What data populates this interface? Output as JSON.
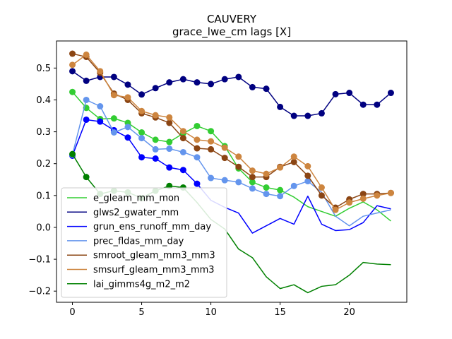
{
  "chart_data": {
    "type": "line",
    "title": "CAUVERY",
    "subtitle": "grace_lwe_cm lags [X]",
    "xlabel": "",
    "ylabel": "",
    "xlim": [
      -1.15,
      24.15
    ],
    "ylim": [
      -0.235,
      0.585
    ],
    "xticks": [
      0,
      5,
      10,
      15,
      20
    ],
    "yticks": [
      -0.2,
      -0.1,
      0.0,
      0.1,
      0.2,
      0.3,
      0.4,
      0.5
    ],
    "ytick_labels": [
      "−0.2",
      "−0.1",
      "0.0",
      "0.1",
      "0.2",
      "0.3",
      "0.4",
      "0.5"
    ],
    "grid": false,
    "legend_position": "lower-left",
    "x": [
      0,
      1,
      2,
      3,
      4,
      5,
      6,
      7,
      8,
      9,
      10,
      11,
      12,
      13,
      14,
      15,
      16,
      17,
      18,
      19,
      20,
      21,
      22,
      23
    ],
    "series": [
      {
        "name": "e_gleam_mm_mon",
        "color": "#32cd32",
        "values": [
          0.425,
          0.375,
          0.34,
          0.342,
          0.328,
          0.298,
          0.275,
          0.268,
          0.295,
          0.318,
          0.302,
          0.255,
          0.185,
          0.142,
          0.125,
          0.117,
          0.095,
          0.065,
          0.05,
          0.035,
          0.06,
          0.08,
          0.055,
          0.02
        ],
        "marker_upto": 15
      },
      {
        "name": "glws2_gwater_mm",
        "color": "#000080",
        "values": [
          0.49,
          0.46,
          0.472,
          0.472,
          0.448,
          0.417,
          0.437,
          0.455,
          0.465,
          0.455,
          0.45,
          0.465,
          0.472,
          0.44,
          0.435,
          0.378,
          0.35,
          0.35,
          0.358,
          0.418,
          0.422,
          0.385,
          0.385,
          0.422
        ],
        "marker_upto": 23
      },
      {
        "name": "grun_ens_runoff_mm_day",
        "color": "#0000ff",
        "values": [
          0.225,
          0.338,
          0.332,
          0.305,
          0.282,
          0.22,
          0.216,
          0.188,
          0.18,
          0.137,
          0.085,
          0.063,
          0.045,
          -0.018,
          0.005,
          0.028,
          0.01,
          0.098,
          0.01,
          -0.01,
          -0.007,
          0.015,
          0.068,
          0.058
        ],
        "marker_upto": 9
      },
      {
        "name": "prec_fldas_mm_day",
        "color": "#6495ed",
        "values": [
          0.228,
          0.4,
          0.38,
          0.298,
          0.315,
          0.28,
          0.245,
          0.247,
          0.236,
          0.22,
          0.155,
          0.148,
          0.142,
          0.122,
          0.105,
          0.098,
          0.13,
          0.145,
          0.11,
          0.035,
          0.005,
          0.035,
          0.045,
          0.055
        ],
        "marker_upto": 17
      },
      {
        "name": "smroot_gleam_mm3_mm3",
        "color": "#8b4513",
        "values": [
          0.545,
          0.535,
          0.485,
          0.42,
          0.4,
          0.358,
          0.345,
          0.328,
          0.28,
          0.248,
          0.245,
          0.218,
          0.19,
          0.158,
          0.158,
          0.19,
          0.205,
          0.162,
          0.1,
          0.062,
          0.088,
          0.105,
          0.105,
          0.108
        ],
        "marker_upto": 23
      },
      {
        "name": "smsurf_gleam_mm3_mm3",
        "color": "#cd853f",
        "values": [
          0.51,
          0.542,
          0.49,
          0.415,
          0.408,
          0.365,
          0.352,
          0.345,
          0.302,
          0.275,
          0.27,
          0.25,
          0.222,
          0.178,
          0.168,
          0.188,
          0.222,
          0.192,
          0.125,
          0.055,
          0.078,
          0.09,
          0.1,
          0.108
        ],
        "marker_upto": 23
      },
      {
        "name": "lai_gimms4g_m2_m2",
        "color": "#008000",
        "values": [
          0.23,
          0.158,
          0.105,
          0.115,
          0.11,
          0.092,
          0.115,
          0.13,
          0.125,
          0.078,
          0.025,
          -0.005,
          -0.068,
          -0.095,
          -0.155,
          -0.192,
          -0.18,
          -0.205,
          -0.185,
          -0.18,
          -0.15,
          -0.11,
          -0.115,
          -0.117
        ],
        "marker_upto": 8
      }
    ]
  }
}
